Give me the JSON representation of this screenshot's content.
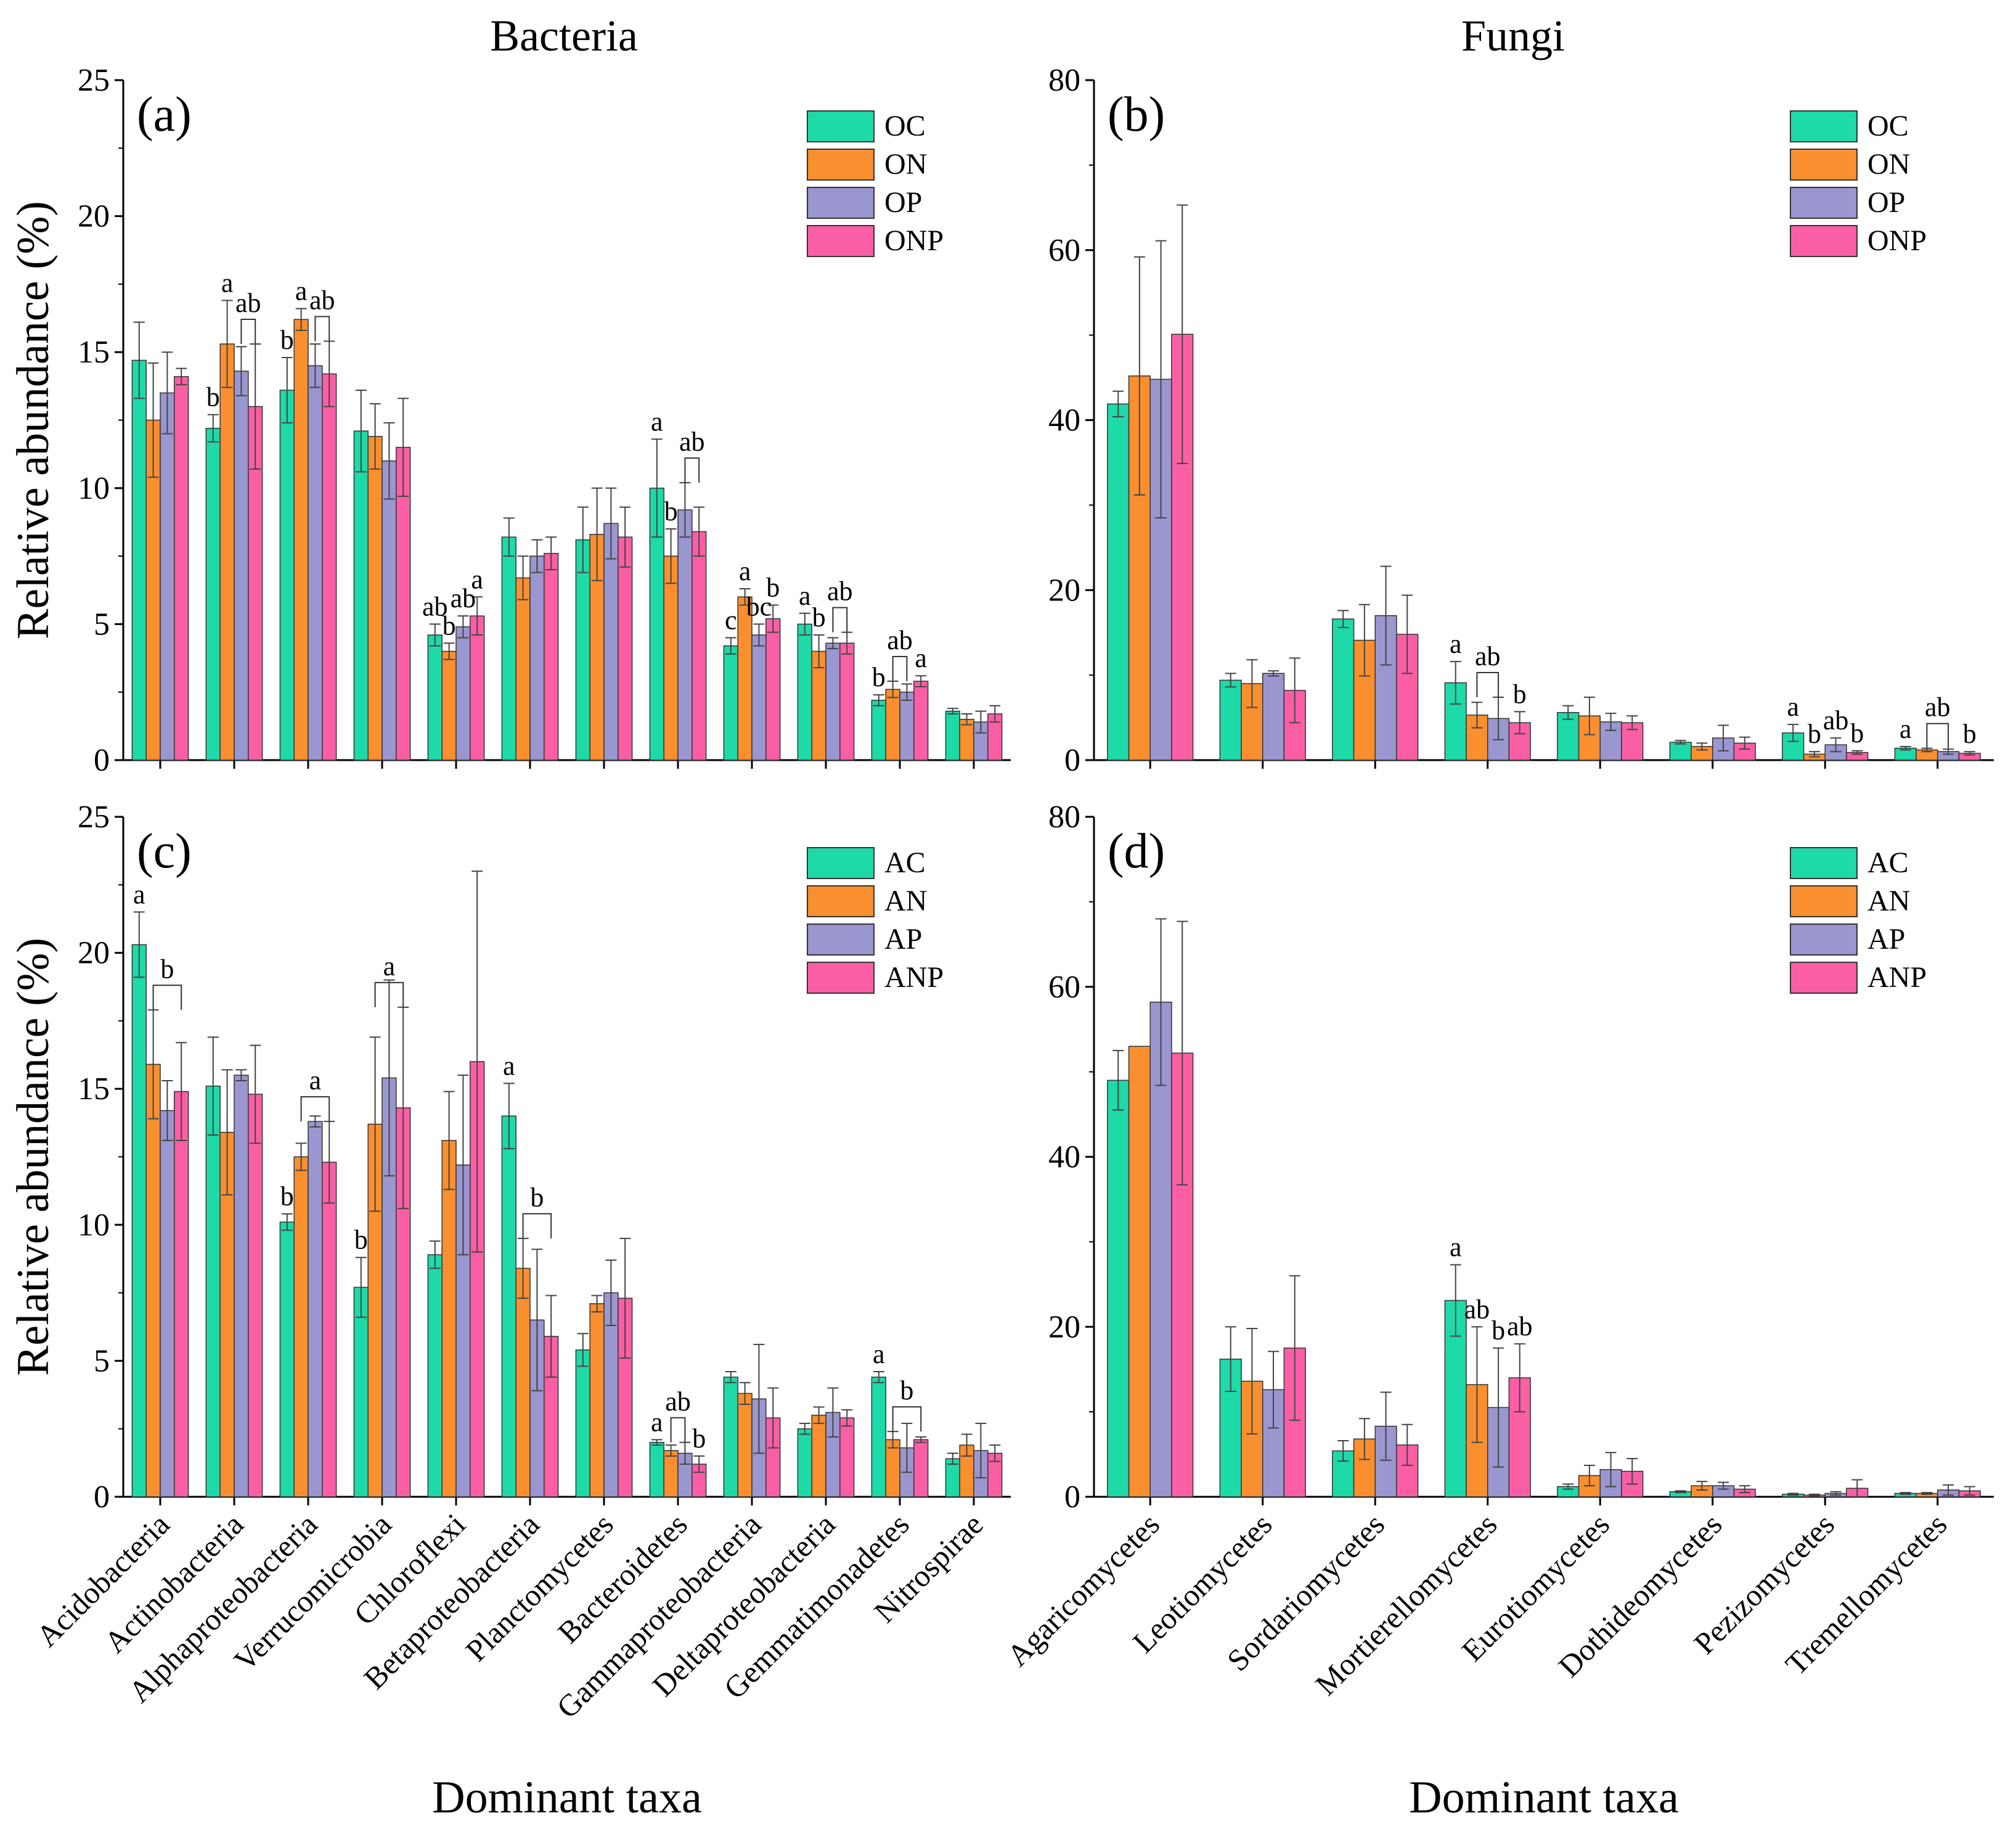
{
  "colors": {
    "OC_AC": "#1ed9a8",
    "ON_AN": "#f98f2e",
    "OP_AP": "#9a96cf",
    "ONP_ANP": "#fa5fa5"
  },
  "column_titles": [
    "Bacteria",
    "Fungi"
  ],
  "chart_data": [
    {
      "id": "a",
      "type": "bar",
      "tag": "(a)",
      "title": "Bacteria",
      "xlabel": "",
      "ylabel": "Relative abundance (%)",
      "ylim": [
        0,
        25
      ],
      "yticks": [
        0,
        5,
        10,
        15,
        20,
        25
      ],
      "categories": [
        "Acidobacteria",
        "Actinobacteria",
        "Alphaproteobacteria",
        "Verrucomicrobia",
        "Chloroflexi",
        "Betaproteobacteria",
        "Planctomycetes",
        "Bacteroidetes",
        "Gammaproteobacteria",
        "Deltaproteobacteria",
        "Gemmatimonadetes",
        "Nitrospirae"
      ],
      "show_category_labels": false,
      "legend_position": "top-right",
      "series": [
        {
          "name": "OC",
          "values": [
            14.7,
            12.2,
            13.6,
            12.1,
            4.6,
            8.2,
            8.1,
            10.0,
            4.2,
            5.0,
            2.2,
            1.8
          ],
          "errors": [
            1.4,
            0.5,
            1.2,
            1.5,
            0.4,
            0.7,
            1.2,
            1.8,
            0.3,
            0.4,
            0.2,
            0.1
          ]
        },
        {
          "name": "ON",
          "values": [
            12.5,
            15.3,
            16.2,
            11.9,
            4.0,
            6.7,
            8.3,
            7.5,
            6.0,
            4.0,
            2.6,
            1.5
          ],
          "errors": [
            2.1,
            1.6,
            0.4,
            1.2,
            0.3,
            0.8,
            1.7,
            1.0,
            0.3,
            0.6,
            0.3,
            0.2
          ]
        },
        {
          "name": "OP",
          "values": [
            13.5,
            14.3,
            14.5,
            11.0,
            4.9,
            7.5,
            8.7,
            9.2,
            4.6,
            4.3,
            2.5,
            1.4
          ],
          "errors": [
            1.5,
            0.9,
            0.8,
            1.4,
            0.4,
            0.6,
            1.3,
            1.0,
            0.4,
            0.2,
            0.3,
            0.4
          ]
        },
        {
          "name": "ONP",
          "values": [
            14.1,
            13.0,
            14.2,
            11.5,
            5.3,
            7.6,
            8.2,
            8.4,
            5.2,
            4.3,
            2.9,
            1.7
          ],
          "errors": [
            0.3,
            2.3,
            1.2,
            1.8,
            0.7,
            0.6,
            1.1,
            0.9,
            0.5,
            0.4,
            0.2,
            0.3
          ]
        }
      ],
      "significance": [
        {
          "category": 1,
          "series": 0,
          "text": "b"
        },
        {
          "category": 1,
          "series": 1,
          "text": "a"
        },
        {
          "category": 1,
          "series": 2,
          "text": "ab",
          "bracket_to": 3
        },
        {
          "category": 2,
          "series": 0,
          "text": "b"
        },
        {
          "category": 2,
          "series": 1,
          "text": "a"
        },
        {
          "category": 2,
          "series": 2,
          "text": "ab",
          "bracket_to": 3
        },
        {
          "category": 4,
          "series": 0,
          "text": "ab"
        },
        {
          "category": 4,
          "series": 1,
          "text": "b"
        },
        {
          "category": 4,
          "series": 2,
          "text": "ab"
        },
        {
          "category": 4,
          "series": 3,
          "text": "a"
        },
        {
          "category": 7,
          "series": 0,
          "text": "a"
        },
        {
          "category": 7,
          "series": 1,
          "text": "b"
        },
        {
          "category": 7,
          "series": 2,
          "text": "ab",
          "bracket_to": 3
        },
        {
          "category": 8,
          "series": 0,
          "text": "c"
        },
        {
          "category": 8,
          "series": 1,
          "text": "a"
        },
        {
          "category": 8,
          "series": 2,
          "text": "bc"
        },
        {
          "category": 8,
          "series": 3,
          "text": "b"
        },
        {
          "category": 9,
          "series": 0,
          "text": "a"
        },
        {
          "category": 9,
          "series": 1,
          "text": "b"
        },
        {
          "category": 9,
          "series": 2,
          "text": "ab",
          "bracket_to": 3
        },
        {
          "category": 10,
          "series": 0,
          "text": "b"
        },
        {
          "category": 10,
          "series": 1,
          "text": "ab",
          "bracket_to": 2
        },
        {
          "category": 10,
          "series": 3,
          "text": "a"
        }
      ]
    },
    {
      "id": "b",
      "type": "bar",
      "tag": "(b)",
      "title": "Fungi",
      "xlabel": "",
      "ylabel": "",
      "ylim": [
        0,
        80
      ],
      "yticks": [
        0,
        20,
        40,
        60,
        80
      ],
      "categories": [
        "Agaricomycetes",
        "Leotiomycetes",
        "Sordariomycetes",
        "Mortierellomycetes",
        "Eurotiomycetes",
        "Dothideomycetes",
        "Pezizomycetes",
        "Tremellomycetes"
      ],
      "show_category_labels": false,
      "legend_position": "top-right",
      "series": [
        {
          "name": "OC",
          "values": [
            41.9,
            9.4,
            16.6,
            9.1,
            5.6,
            2.1,
            3.2,
            1.4
          ],
          "errors": [
            1.5,
            0.8,
            1.0,
            2.5,
            0.8,
            0.2,
            1.0,
            0.2
          ]
        },
        {
          "name": "ON",
          "values": [
            45.2,
            9.0,
            14.1,
            5.3,
            5.2,
            1.6,
            0.7,
            1.2
          ],
          "errors": [
            14.0,
            2.8,
            4.2,
            1.5,
            2.2,
            0.4,
            0.3,
            0.2
          ]
        },
        {
          "name": "OP",
          "values": [
            44.8,
            10.2,
            17.0,
            4.9,
            4.5,
            2.6,
            1.8,
            1.0
          ],
          "errors": [
            16.3,
            0.3,
            5.8,
            2.5,
            1.0,
            1.5,
            0.8,
            0.3
          ]
        },
        {
          "name": "ONP",
          "values": [
            50.1,
            8.2,
            14.8,
            4.4,
            4.4,
            2.0,
            0.9,
            0.8
          ],
          "errors": [
            15.2,
            3.8,
            4.6,
            1.3,
            0.8,
            0.7,
            0.2,
            0.2
          ]
        }
      ],
      "significance": [
        {
          "category": 3,
          "series": 0,
          "text": "a"
        },
        {
          "category": 3,
          "series": 1,
          "text": "ab",
          "bracket_to": 2
        },
        {
          "category": 3,
          "series": 3,
          "text": "b"
        },
        {
          "category": 6,
          "series": 0,
          "text": "a"
        },
        {
          "category": 6,
          "series": 1,
          "text": "b"
        },
        {
          "category": 6,
          "series": 2,
          "text": "ab"
        },
        {
          "category": 6,
          "series": 3,
          "text": "b"
        },
        {
          "category": 7,
          "series": 0,
          "text": "a"
        },
        {
          "category": 7,
          "series": 1,
          "text": "ab",
          "bracket_to": 2
        },
        {
          "category": 7,
          "series": 3,
          "text": "b"
        }
      ]
    },
    {
      "id": "c",
      "type": "bar",
      "tag": "(c)",
      "title": "",
      "xlabel": "Dominant taxa",
      "ylabel": "Relative abundance (%)",
      "ylim": [
        0,
        25
      ],
      "yticks": [
        0,
        5,
        10,
        15,
        20,
        25
      ],
      "categories": [
        "Acidobacteria",
        "Actinobacteria",
        "Alphaproteobacteria",
        "Verrucomicrobia",
        "Chloroflexi",
        "Betaproteobacteria",
        "Planctomycetes",
        "Bacteroidetes",
        "Gammaproteobacteria",
        "Deltaproteobacteria",
        "Gemmatimonadetes",
        "Nitrospirae"
      ],
      "show_category_labels": true,
      "legend_position": "top-right",
      "series": [
        {
          "name": "AC",
          "values": [
            20.3,
            15.1,
            10.1,
            7.7,
            8.9,
            14.0,
            5.4,
            2.0,
            4.4,
            2.5,
            4.4,
            1.4
          ],
          "errors": [
            1.2,
            1.8,
            0.3,
            1.1,
            0.5,
            1.2,
            0.6,
            0.1,
            0.2,
            0.2,
            0.2,
            0.2
          ]
        },
        {
          "name": "AN",
          "values": [
            15.9,
            13.4,
            12.5,
            13.7,
            13.1,
            8.4,
            7.1,
            1.7,
            3.8,
            3.0,
            2.1,
            1.9
          ],
          "errors": [
            2.0,
            2.3,
            0.5,
            3.2,
            1.8,
            1.1,
            0.3,
            0.2,
            0.4,
            0.3,
            0.3,
            0.4
          ]
        },
        {
          "name": "AP",
          "values": [
            14.2,
            15.5,
            13.8,
            15.4,
            12.2,
            6.5,
            7.5,
            1.6,
            3.6,
            3.1,
            1.8,
            1.7
          ],
          "errors": [
            1.1,
            0.2,
            0.2,
            3.6,
            3.3,
            2.6,
            1.2,
            0.4,
            2.0,
            0.9,
            0.9,
            1.0
          ]
        },
        {
          "name": "ANP",
          "values": [
            14.9,
            14.8,
            12.3,
            14.3,
            16.0,
            5.9,
            7.3,
            1.2,
            2.9,
            2.9,
            2.1,
            1.6
          ],
          "errors": [
            1.8,
            1.8,
            1.5,
            3.7,
            7.0,
            1.5,
            2.2,
            0.3,
            1.1,
            0.3,
            0.1,
            0.3
          ]
        }
      ],
      "significance": [
        {
          "category": 0,
          "series": 0,
          "text": "a"
        },
        {
          "category": 0,
          "series": 1,
          "text": "b",
          "bracket_to": 3
        },
        {
          "category": 2,
          "series": 0,
          "text": "b"
        },
        {
          "category": 2,
          "series": 2,
          "text": "a",
          "bracket_from": 1,
          "bracket_to": 3
        },
        {
          "category": 3,
          "series": 0,
          "text": "b"
        },
        {
          "category": 3,
          "series": 2,
          "text": "a",
          "bracket_from": 1,
          "bracket_to": 3
        },
        {
          "category": 5,
          "series": 0,
          "text": "a"
        },
        {
          "category": 5,
          "series": 2,
          "text": "b",
          "bracket_from": 1,
          "bracket_to": 3
        },
        {
          "category": 7,
          "series": 0,
          "text": "a"
        },
        {
          "category": 7,
          "series": 1,
          "text": "ab",
          "bracket_to": 2
        },
        {
          "category": 7,
          "series": 3,
          "text": "b"
        },
        {
          "category": 10,
          "series": 0,
          "text": "a"
        },
        {
          "category": 10,
          "series": 2,
          "text": "b",
          "bracket_from": 1,
          "bracket_to": 3
        }
      ]
    },
    {
      "id": "d",
      "type": "bar",
      "tag": "(d)",
      "title": "",
      "xlabel": "Dominant taxa",
      "ylabel": "",
      "ylim": [
        0,
        80
      ],
      "yticks": [
        0,
        20,
        40,
        60,
        80
      ],
      "categories": [
        "Agaricomycetes",
        "Leotiomycetes",
        "Sordariomycetes",
        "Mortierellomycetes",
        "Eurotiomycetes",
        "Dothideomycetes",
        "Pezizomycetes",
        "Tremellomycetes"
      ],
      "show_category_labels": true,
      "legend_position": "top-right",
      "series": [
        {
          "name": "AC",
          "values": [
            49.0,
            16.2,
            5.4,
            23.1,
            1.2,
            0.6,
            0.3,
            0.4
          ],
          "errors": [
            3.5,
            3.8,
            1.2,
            4.2,
            0.3,
            0.1,
            0.1,
            0.1
          ]
        },
        {
          "name": "AN",
          "values": [
            53.0,
            13.6,
            6.8,
            13.2,
            2.5,
            1.3,
            0.2,
            0.4
          ],
          "errors": [
            0.0,
            6.2,
            2.4,
            6.8,
            1.2,
            0.5,
            0.1,
            0.1
          ]
        },
        {
          "name": "AP",
          "values": [
            58.2,
            12.6,
            8.3,
            10.5,
            3.2,
            1.3,
            0.4,
            0.8
          ],
          "errors": [
            9.8,
            4.5,
            4.0,
            7.0,
            2.0,
            0.4,
            0.2,
            0.6
          ]
        },
        {
          "name": "ANP",
          "values": [
            52.2,
            17.5,
            6.1,
            14.0,
            3.0,
            0.9,
            1.0,
            0.7
          ],
          "errors": [
            15.5,
            8.5,
            2.4,
            4.0,
            1.5,
            0.4,
            1.0,
            0.5
          ]
        }
      ],
      "significance": [
        {
          "category": 3,
          "series": 0,
          "text": "a"
        },
        {
          "category": 3,
          "series": 1,
          "text": "ab"
        },
        {
          "category": 3,
          "series": 2,
          "text": "b"
        },
        {
          "category": 3,
          "series": 3,
          "text": "ab"
        }
      ]
    }
  ]
}
